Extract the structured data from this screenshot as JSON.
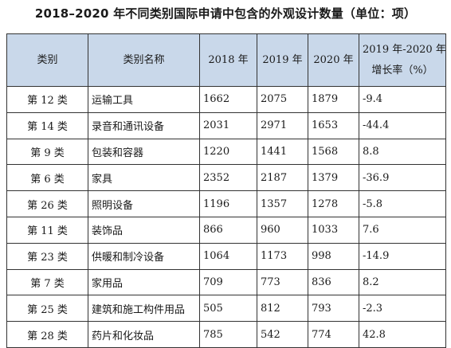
{
  "title": "2018–2020 年不同类别国际申请中包含的外观设计数量（单位：项）",
  "headers": {
    "category": "类别",
    "category_name": "类别名称",
    "y2018": "2018 年",
    "y2019": "2019 年",
    "y2020": "2020 年",
    "growth_line1": "2019 年-2020 年",
    "growth_line2": "增长率（%）"
  },
  "rows": [
    {
      "category": "第 12 类",
      "name": "运输工具",
      "y2018": "1662",
      "y2019": "2075",
      "y2020": "1879",
      "growth": "-9.4"
    },
    {
      "category": "第 14 类",
      "name": "录音和通讯设备",
      "y2018": "2031",
      "y2019": "2971",
      "y2020": "1653",
      "growth": "-44.4"
    },
    {
      "category": "第 9 类",
      "name": "包装和容器",
      "y2018": "1220",
      "y2019": "1441",
      "y2020": "1568",
      "growth": "8.8"
    },
    {
      "category": "第 6 类",
      "name": "家具",
      "y2018": "2352",
      "y2019": "2187",
      "y2020": "1379",
      "growth": "-36.9"
    },
    {
      "category": "第 26 类",
      "name": "照明设备",
      "y2018": "1196",
      "y2019": "1357",
      "y2020": "1278",
      "growth": "-5.8"
    },
    {
      "category": "第 11 类",
      "name": "装饰品",
      "y2018": "866",
      "y2019": "960",
      "y2020": "1033",
      "growth": "7.6"
    },
    {
      "category": "第 23 类",
      "name": "供暖和制冷设备",
      "y2018": "1064",
      "y2019": "1173",
      "y2020": "998",
      "growth": "-14.9"
    },
    {
      "category": "第 7 类",
      "name": "家用品",
      "y2018": "709",
      "y2019": "773",
      "y2020": "836",
      "growth": "8.2"
    },
    {
      "category": "第 25 类",
      "name": "建筑和施工构件用品",
      "y2018": "505",
      "y2019": "812",
      "y2020": "793",
      "growth": "-2.3"
    },
    {
      "category": "第 28 类",
      "name": "药片和化妆品",
      "y2018": "785",
      "y2019": "542",
      "y2020": "774",
      "growth": "42.8"
    }
  ]
}
